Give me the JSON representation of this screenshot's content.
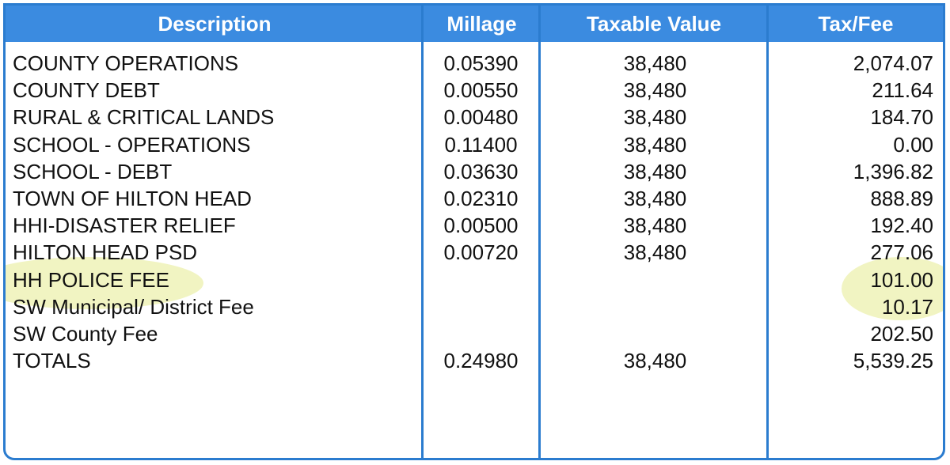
{
  "headers": {
    "description": "Description",
    "millage": "Millage",
    "taxable_value": "Taxable Value",
    "tax_fee": "Tax/Fee"
  },
  "rows": [
    {
      "description": "COUNTY OPERATIONS",
      "millage": "0.05390",
      "taxable_value": "38,480",
      "tax_fee": "2,074.07"
    },
    {
      "description": "COUNTY DEBT",
      "millage": "0.00550",
      "taxable_value": "38,480",
      "tax_fee": "211.64"
    },
    {
      "description": "RURAL & CRITICAL LANDS",
      "millage": "0.00480",
      "taxable_value": "38,480",
      "tax_fee": "184.70"
    },
    {
      "description": "SCHOOL - OPERATIONS",
      "millage": "0.11400",
      "taxable_value": "38,480",
      "tax_fee": "0.00"
    },
    {
      "description": "SCHOOL - DEBT",
      "millage": "0.03630",
      "taxable_value": "38,480",
      "tax_fee": "1,396.82"
    },
    {
      "description": "TOWN OF HILTON HEAD",
      "millage": "0.02310",
      "taxable_value": "38,480",
      "tax_fee": "888.89"
    },
    {
      "description": "HHI-DISASTER RELIEF",
      "millage": "0.00500",
      "taxable_value": "38,480",
      "tax_fee": "192.40"
    },
    {
      "description": "HILTON HEAD PSD",
      "millage": "0.00720",
      "taxable_value": "38,480",
      "tax_fee": "277.06"
    },
    {
      "description": "HH POLICE FEE",
      "millage": "",
      "taxable_value": "",
      "tax_fee": "101.00"
    },
    {
      "description": "SW Municipal/ District Fee",
      "millage": "",
      "taxable_value": "",
      "tax_fee": "10.17"
    },
    {
      "description": "SW County Fee",
      "millage": "",
      "taxable_value": "",
      "tax_fee": "202.50"
    },
    {
      "description": "TOTALS",
      "millage": "0.24980",
      "taxable_value": "38,480",
      "tax_fee": "5,539.25"
    }
  ],
  "colors": {
    "header_bg": "#3b8be0",
    "border": "#2b7ccf",
    "highlight": "#e1e678"
  }
}
